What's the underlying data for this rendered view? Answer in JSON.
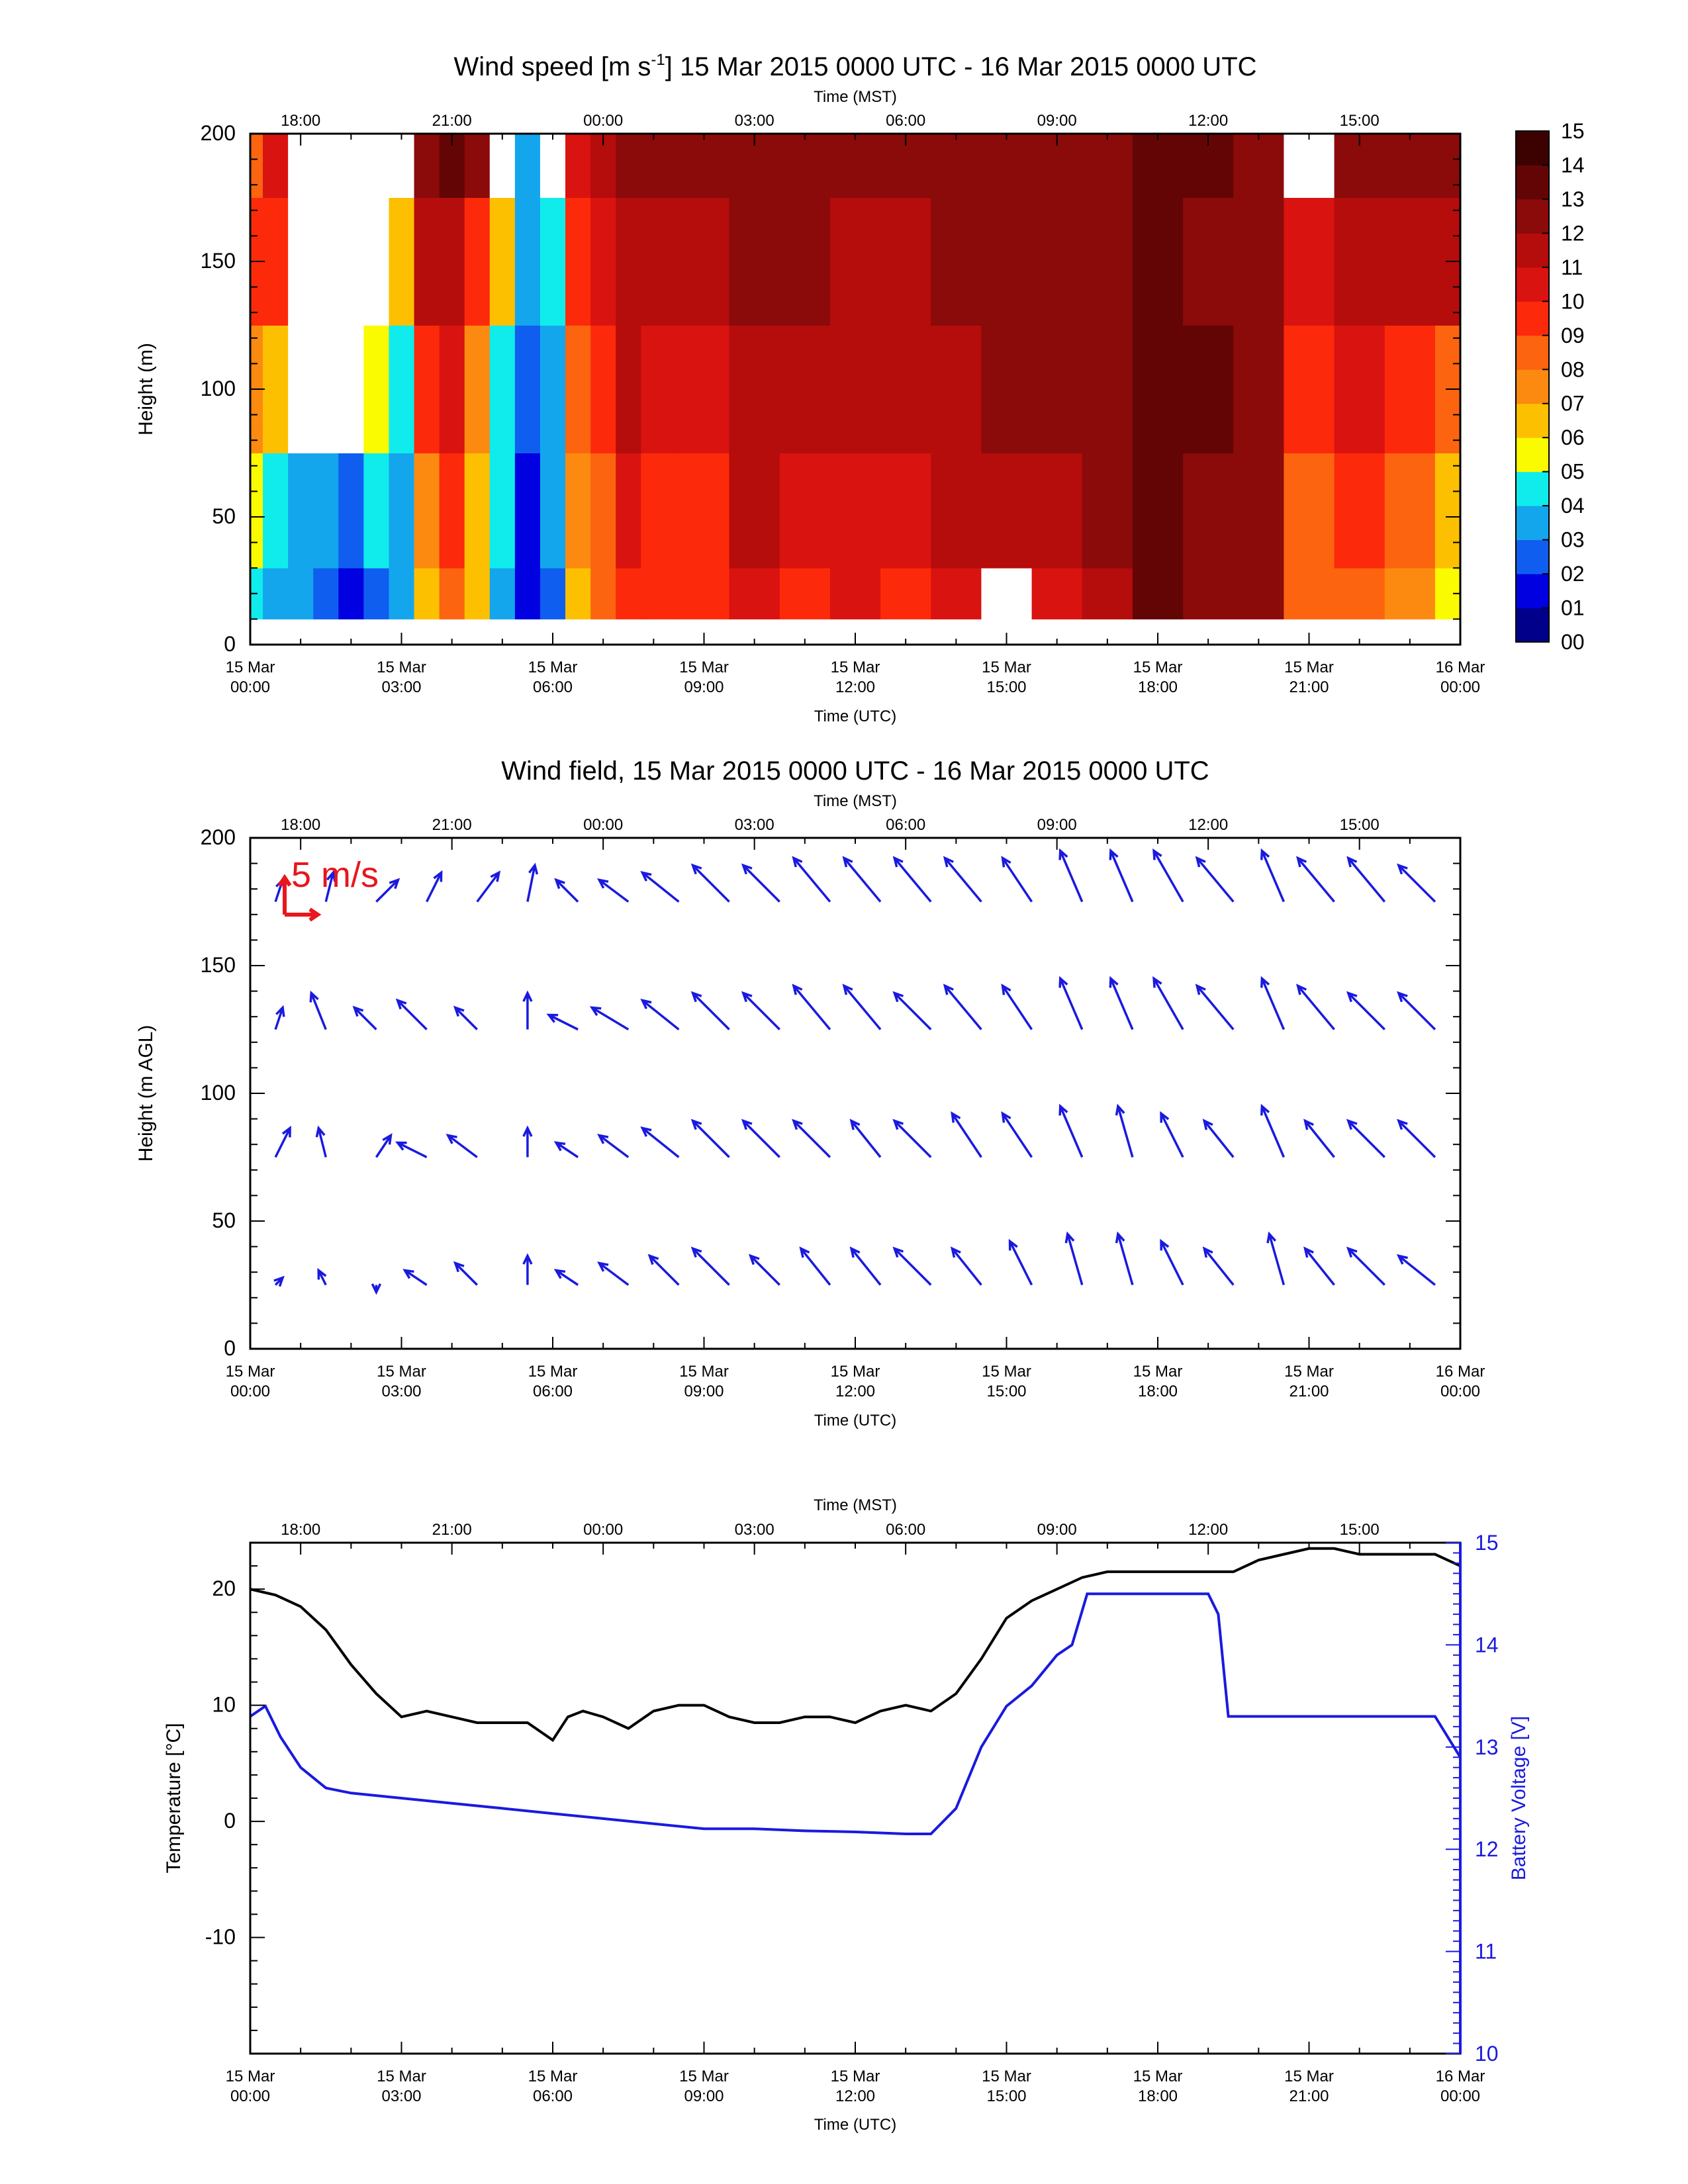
{
  "panel1": {
    "title_main": "Wind speed [m s",
    "title_sup": "-1",
    "title_rest": "] 15 Mar 2015 0000 UTC - 16 Mar 2015 0000 UTC",
    "top_axis_label": "Time (MST)",
    "bottom_axis_label": "Time (UTC)",
    "ylabel": "Height (m)"
  },
  "panel2": {
    "title": "Wind field, 15 Mar 2015 0000 UTC - 16 Mar 2015 0000 UTC",
    "top_axis_label": "Time (MST)",
    "bottom_axis_label": "Time (UTC)",
    "ylabel": "Height (m AGL)",
    "reference_vector_label": "5 m/s"
  },
  "panel3": {
    "top_axis_label": "Time (MST)",
    "bottom_axis_label": "Time (UTC)",
    "ylabel_left": "Temperature [°C]",
    "ylabel_right": "Battery Voltage [V]"
  },
  "axes": {
    "mst_ticks": [
      "18:00",
      "21:00",
      "00:00",
      "03:00",
      "06:00",
      "09:00",
      "12:00",
      "15:00"
    ],
    "utc_ticks_line1": [
      "15 Mar",
      "15 Mar",
      "15 Mar",
      "15 Mar",
      "15 Mar",
      "15 Mar",
      "15 Mar",
      "15 Mar",
      "16 Mar"
    ],
    "utc_ticks_line2": [
      "00:00",
      "03:00",
      "06:00",
      "09:00",
      "12:00",
      "15:00",
      "18:00",
      "21:00",
      "00:00"
    ],
    "height_ticks": [
      "0",
      "50",
      "100",
      "150",
      "200"
    ],
    "temp_ticks": [
      "20",
      "10",
      "0",
      "-10"
    ],
    "volt_ticks": [
      "15",
      "14",
      "13",
      "12",
      "11",
      "10"
    ],
    "colorbar_labels": [
      "00",
      "01",
      "02",
      "03",
      "04",
      "05",
      "06",
      "07",
      "08",
      "09",
      "10",
      "11",
      "12",
      "13",
      "14",
      "15"
    ]
  },
  "colors": {
    "wind_vectors": "#1a1adf",
    "reference_vector": "#e8161d",
    "temperature_line": "#000000",
    "battery_line": "#1a1adf",
    "right_axis": "#1a1adf",
    "colorscale": [
      "#00008b",
      "#0000e0",
      "#0f5ef0",
      "#14a6ec",
      "#10ecec",
      "#fafa00",
      "#fcc000",
      "#fc8a10",
      "#fc6410",
      "#fc2a0a",
      "#d91310",
      "#b50c0c",
      "#8b0a0a",
      "#640505",
      "#3c0202"
    ]
  },
  "chart_data": [
    {
      "type": "heatmap",
      "title": "Wind speed [m s-1] 15 Mar 2015 0000 UTC - 16 Mar 2015 0000 UTC",
      "xlabel": "Time (UTC)",
      "xlabel_top": "Time (MST)",
      "ylabel": "Height (m)",
      "x_range_utc_hours": [
        0,
        24
      ],
      "ylim": [
        0,
        200
      ],
      "colorbar_range": [
        0,
        15
      ],
      "colorbar_unit": "m s-1",
      "missing_data_color": "white",
      "time_utc_hours": [
        0.0,
        0.5,
        1.0,
        1.5,
        2.0,
        2.5,
        3.0,
        3.5,
        4.0,
        4.5,
        5.0,
        5.5,
        6.0,
        6.5,
        7.0,
        7.5,
        8.0,
        9.0,
        10.0,
        11.0,
        12.0,
        13.0,
        14.0,
        15.0,
        16.0,
        17.0,
        18.0,
        19.0,
        20.0,
        21.0,
        22.0,
        23.0,
        24.0
      ],
      "heights_m": [
        10,
        50,
        100,
        150,
        200
      ],
      "speed_ms": [
        [
          4,
          5,
          7,
          9,
          8
        ],
        [
          3,
          4,
          6,
          9,
          10
        ],
        [
          3,
          3,
          null,
          null,
          null
        ],
        [
          2,
          3,
          null,
          null,
          null
        ],
        [
          1,
          2,
          null,
          null,
          null
        ],
        [
          2,
          4,
          5,
          null,
          null
        ],
        [
          3,
          3,
          4,
          6,
          null
        ],
        [
          6,
          7,
          9,
          11,
          12
        ],
        [
          8,
          9,
          10,
          11,
          13
        ],
        [
          6,
          6,
          7,
          9,
          12
        ],
        [
          3,
          4,
          4,
          6,
          null
        ],
        [
          1,
          1,
          2,
          3,
          3
        ],
        [
          2,
          3,
          3,
          4,
          null
        ],
        [
          6,
          7,
          8,
          9,
          10
        ],
        [
          8,
          8,
          9,
          10,
          11
        ],
        [
          9,
          10,
          11,
          11,
          12
        ],
        [
          9,
          9,
          10,
          11,
          12
        ],
        [
          9,
          9,
          10,
          11,
          12
        ],
        [
          10,
          11,
          11,
          12,
          12
        ],
        [
          9,
          10,
          11,
          12,
          12
        ],
        [
          10,
          10,
          11,
          11,
          12
        ],
        [
          9,
          10,
          11,
          11,
          12
        ],
        [
          10,
          11,
          11,
          12,
          12
        ],
        [
          null,
          11,
          12,
          12,
          12
        ],
        [
          10,
          11,
          12,
          12,
          12
        ],
        [
          11,
          12,
          12,
          12,
          12
        ],
        [
          13,
          13,
          13,
          13,
          13
        ],
        [
          12,
          12,
          13,
          12,
          13
        ],
        [
          12,
          12,
          12,
          12,
          12
        ],
        [
          8,
          8,
          9,
          10,
          null
        ],
        [
          8,
          9,
          10,
          11,
          12
        ],
        [
          7,
          8,
          9,
          11,
          12
        ],
        [
          5,
          6,
          8,
          11,
          12
        ]
      ]
    },
    {
      "type": "scatter",
      "subtype": "vector field",
      "title": "Wind field, 15 Mar 2015 0000 UTC - 16 Mar 2015 0000 UTC",
      "xlabel": "Time (UTC)",
      "xlabel_top": "Time (MST)",
      "ylabel": "Height (m AGL)",
      "x_range_utc_hours": [
        0,
        24
      ],
      "ylim": [
        0,
        200
      ],
      "reference_vector": "5 m/s",
      "time_utc_hours": [
        0.5,
        1.5,
        2.5,
        3.5,
        4.5,
        5.5,
        6.5,
        7.5,
        8.5,
        9.5,
        10.5,
        11.5,
        12.5,
        13.5,
        14.5,
        15.5,
        16.5,
        17.5,
        18.5,
        19.5,
        20.5,
        21.5,
        22.5,
        23.5
      ],
      "heights_m": [
        25,
        75,
        125,
        175
      ],
      "vector_u_ms": [
        [
          1,
          2,
          1,
          1
        ],
        [
          -1,
          -1,
          -2,
          1
        ],
        [
          0,
          2,
          -3,
          3
        ],
        [
          -3,
          -4,
          -4,
          2
        ],
        [
          -3,
          -4,
          -3,
          3
        ],
        [
          0,
          0,
          0,
          1
        ],
        [
          -3,
          -3,
          -4,
          -3
        ],
        [
          -4,
          -4,
          -5,
          -4
        ],
        [
          -4,
          -5,
          -5,
          -5
        ],
        [
          -5,
          -5,
          -5,
          -5
        ],
        [
          -4,
          -5,
          -5,
          -5
        ],
        [
          -4,
          -5,
          -5,
          -5
        ],
        [
          -4,
          -4,
          -5,
          -5
        ],
        [
          -5,
          -5,
          -5,
          -5
        ],
        [
          -4,
          -4,
          -5,
          -5
        ],
        [
          -3,
          -4,
          -4,
          -4
        ],
        [
          -2,
          -3,
          -3,
          -3
        ],
        [
          -2,
          -2,
          -3,
          -3
        ],
        [
          -3,
          -3,
          -4,
          -4
        ],
        [
          -4,
          -4,
          -5,
          -5
        ],
        [
          -2,
          -3,
          -3,
          -3
        ],
        [
          -4,
          -4,
          -5,
          -5
        ],
        [
          -5,
          -5,
          -5,
          -5
        ],
        [
          -5,
          -5,
          -5,
          -5
        ]
      ],
      "vector_v_ms": [
        [
          1,
          4,
          3,
          3
        ],
        [
          2,
          4,
          5,
          4
        ],
        [
          -1,
          3,
          3,
          3
        ],
        [
          2,
          2,
          4,
          4
        ],
        [
          3,
          3,
          3,
          4
        ],
        [
          4,
          4,
          5,
          5
        ],
        [
          2,
          2,
          2,
          3
        ],
        [
          3,
          3,
          3,
          3
        ],
        [
          4,
          4,
          4,
          4
        ],
        [
          5,
          5,
          5,
          5
        ],
        [
          4,
          5,
          5,
          5
        ],
        [
          5,
          5,
          6,
          6
        ],
        [
          5,
          5,
          6,
          6
        ],
        [
          5,
          5,
          5,
          6
        ],
        [
          5,
          6,
          6,
          6
        ],
        [
          6,
          6,
          6,
          6
        ],
        [
          7,
          7,
          7,
          7
        ],
        [
          7,
          7,
          7,
          7
        ],
        [
          6,
          6,
          7,
          7
        ],
        [
          5,
          5,
          6,
          6
        ],
        [
          7,
          7,
          7,
          7
        ],
        [
          5,
          5,
          6,
          6
        ],
        [
          5,
          5,
          5,
          6
        ],
        [
          4,
          5,
          5,
          5
        ]
      ]
    },
    {
      "type": "line",
      "xlabel": "Time (UTC)",
      "xlabel_top": "Time (MST)",
      "x_range_utc_hours": [
        0,
        24
      ],
      "y_left_label": "Temperature [°C]",
      "y_left_lim": [
        -20,
        24
      ],
      "y_right_label": "Battery Voltage [V]",
      "y_right_lim": [
        10,
        15
      ],
      "series": [
        {
          "name": "Temperature [°C]",
          "axis": "left",
          "x_utc_hours": [
            0,
            0.5,
            1.0,
            1.5,
            2.0,
            2.5,
            3.0,
            3.5,
            4.0,
            4.5,
            5.0,
            5.5,
            6.0,
            6.3,
            6.6,
            7.0,
            7.5,
            8.0,
            8.5,
            9.0,
            9.5,
            10.0,
            10.5,
            11.0,
            11.5,
            12.0,
            12.5,
            13.0,
            13.5,
            14.0,
            14.5,
            15.0,
            15.5,
            16.0,
            16.5,
            17.0,
            17.5,
            18.0,
            18.5,
            19.0,
            19.5,
            20.0,
            20.5,
            21.0,
            21.5,
            22.0,
            22.5,
            23.0,
            23.5,
            24.0
          ],
          "values": [
            20,
            19.5,
            18.5,
            16.5,
            13.5,
            11,
            9,
            9.5,
            9,
            8.5,
            8.5,
            8.5,
            7,
            9,
            9.5,
            9,
            8,
            9.5,
            10,
            10,
            9,
            8.5,
            8.5,
            9,
            9,
            8.5,
            9.5,
            10,
            9.5,
            11,
            14,
            17.5,
            19,
            20,
            21,
            21.5,
            21.5,
            21.5,
            21.5,
            21.5,
            21.5,
            22.5,
            23,
            23.5,
            23.5,
            23,
            23,
            23,
            23,
            22
          ]
        },
        {
          "name": "Battery Voltage [V]",
          "axis": "right",
          "x_utc_hours": [
            0,
            0.3,
            0.6,
            1.0,
            1.5,
            2.0,
            3.0,
            4.0,
            5.0,
            6.0,
            7.0,
            8.0,
            9.0,
            10.0,
            11.0,
            12.0,
            13.0,
            13.5,
            14.0,
            14.5,
            15.0,
            15.5,
            16.0,
            16.3,
            16.6,
            17.0,
            18.0,
            19.0,
            19.2,
            19.4,
            20.0,
            21.0,
            22.0,
            22.5,
            23.0,
            23.5,
            24.0
          ],
          "values": [
            13.3,
            13.4,
            13.1,
            12.8,
            12.6,
            12.55,
            12.5,
            12.45,
            12.4,
            12.35,
            12.3,
            12.25,
            12.2,
            12.2,
            12.18,
            12.17,
            12.15,
            12.15,
            12.4,
            13.0,
            13.4,
            13.6,
            13.9,
            14.0,
            14.5,
            14.5,
            14.5,
            14.5,
            14.3,
            13.3,
            13.3,
            13.3,
            13.3,
            13.3,
            13.3,
            13.3,
            12.9
          ]
        }
      ]
    }
  ]
}
